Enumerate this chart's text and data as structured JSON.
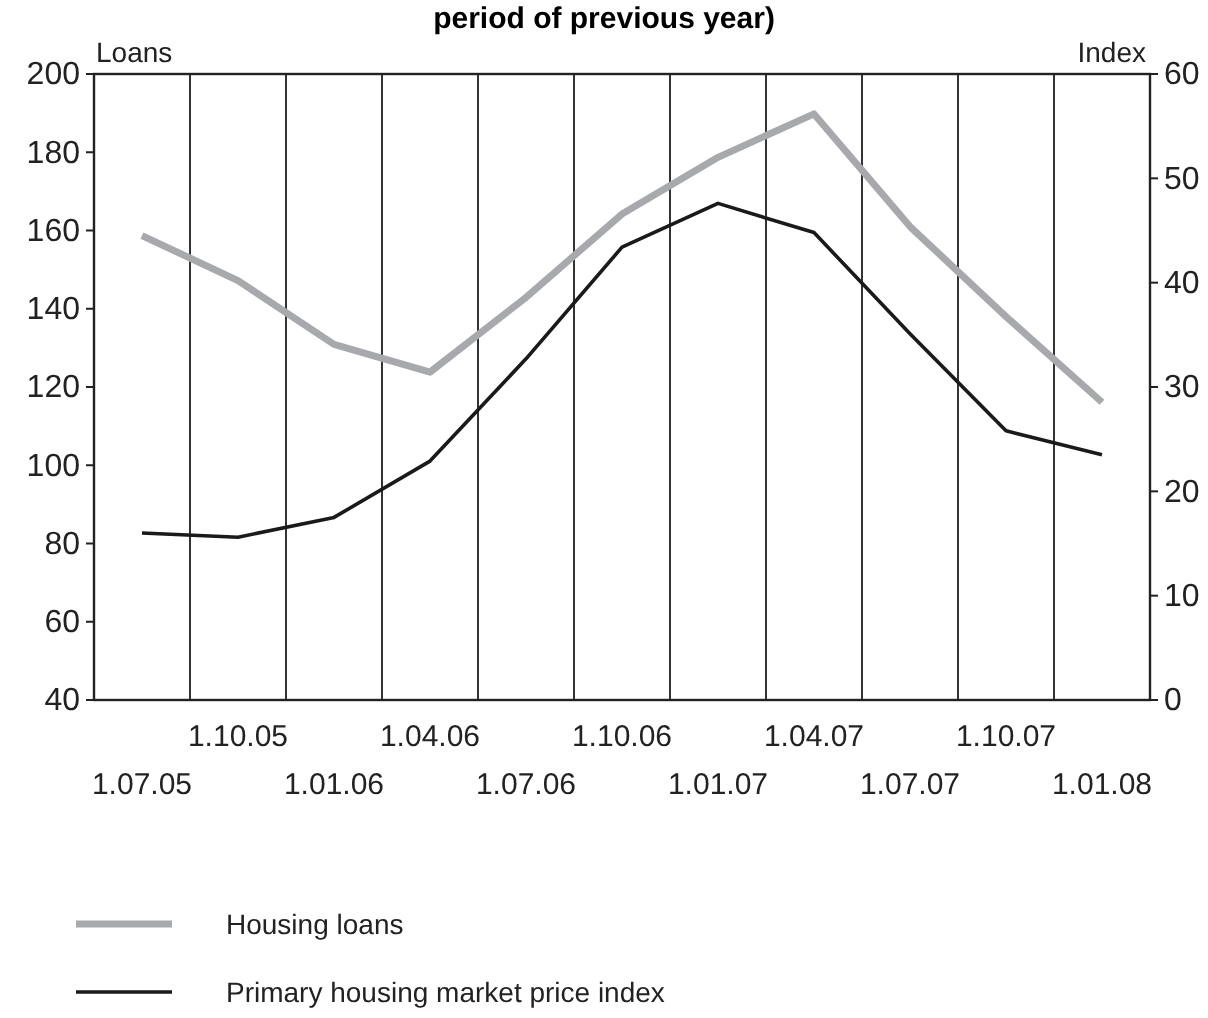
{
  "chart_data": {
    "type": "line",
    "title": "period of previous year)",
    "ylabel": "Loans",
    "y2label": "Index",
    "categories": [
      "1.07.05",
      "1.10.05",
      "1.01.06",
      "1.04.06",
      "1.07.06",
      "1.10.06",
      "1.01.07",
      "1.04.07",
      "1.07.07",
      "1.10.07",
      "1.01.08"
    ],
    "series": [
      {
        "name": "Housing loans",
        "color": "#a7a9ac",
        "values": [
          158.7,
          147.2,
          130.9,
          123.8,
          142.9,
          164.2,
          178.7,
          189.8,
          161,
          138,
          116.1
        ]
      },
      {
        "name": "Primary housing market price index",
        "color": "#1a1a1a",
        "axis": "y2",
        "values": [
          16.0,
          15.6,
          17.5,
          22.9,
          32.7,
          43.4,
          47.6,
          44.8,
          35.1,
          25.8,
          23.5
        ]
      }
    ],
    "ylim": [
      40,
      200
    ],
    "yticks": [
      40,
      60,
      80,
      100,
      120,
      140,
      160,
      180,
      200
    ],
    "y2lim": [
      0,
      60
    ],
    "y2ticks": [
      0,
      10,
      20,
      30,
      40,
      50,
      60
    ],
    "grid": "x",
    "legend": "bottom",
    "marker": "none",
    "line_style": "solid"
  }
}
